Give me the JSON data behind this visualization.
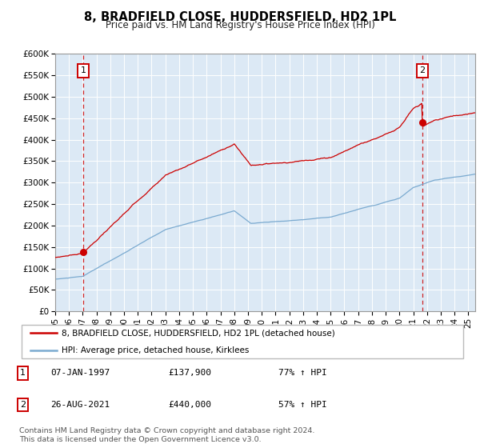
{
  "title": "8, BRADFIELD CLOSE, HUDDERSFIELD, HD2 1PL",
  "subtitle": "Price paid vs. HM Land Registry's House Price Index (HPI)",
  "bg_color": "#dce9f5",
  "hpi_color": "#7aaad0",
  "price_color": "#cc0000",
  "ylim": [
    0,
    600000
  ],
  "yticks": [
    0,
    50000,
    100000,
    150000,
    200000,
    250000,
    300000,
    350000,
    400000,
    450000,
    500000,
    550000,
    600000
  ],
  "ytick_labels": [
    "£0",
    "£50K",
    "£100K",
    "£150K",
    "£200K",
    "£250K",
    "£300K",
    "£350K",
    "£400K",
    "£450K",
    "£500K",
    "£550K",
    "£600K"
  ],
  "xlim_start": 1995.3,
  "xlim_end": 2025.5,
  "xtick_years": [
    1995,
    1996,
    1997,
    1998,
    1999,
    2000,
    2001,
    2002,
    2003,
    2004,
    2005,
    2006,
    2007,
    2008,
    2009,
    2010,
    2011,
    2012,
    2013,
    2014,
    2015,
    2016,
    2017,
    2018,
    2019,
    2020,
    2021,
    2022,
    2023,
    2024,
    2025
  ],
  "sale1_x": 1997.03,
  "sale1_y": 137900,
  "sale2_x": 2021.65,
  "sale2_y": 440000,
  "legend_line1": "8, BRADFIELD CLOSE, HUDDERSFIELD, HD2 1PL (detached house)",
  "legend_line2": "HPI: Average price, detached house, Kirklees",
  "table_rows": [
    {
      "num": "1",
      "date": "07-JAN-1997",
      "price": "£137,900",
      "hpi": "77% ↑ HPI"
    },
    {
      "num": "2",
      "date": "26-AUG-2021",
      "price": "£440,000",
      "hpi": "57% ↑ HPI"
    }
  ],
  "footer": "Contains HM Land Registry data © Crown copyright and database right 2024.\nThis data is licensed under the Open Government Licence v3.0."
}
